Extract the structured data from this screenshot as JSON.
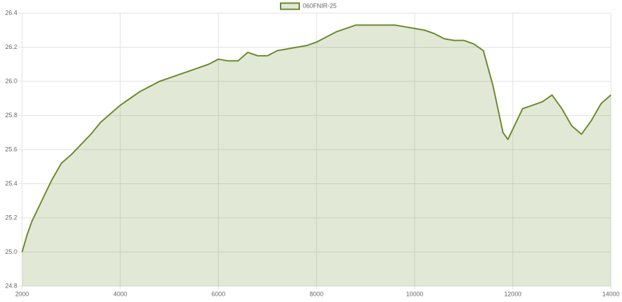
{
  "chart_data": {
    "type": "area",
    "legend": "top",
    "grid": true,
    "x": [
      2000,
      2100,
      2200,
      2400,
      2600,
      2800,
      3000,
      3200,
      3400,
      3600,
      3800,
      4000,
      4200,
      4400,
      4600,
      4800,
      5000,
      5200,
      5400,
      5600,
      5800,
      6000,
      6200,
      6400,
      6600,
      6800,
      7000,
      7200,
      7400,
      7600,
      7800,
      8000,
      8200,
      8400,
      8600,
      8800,
      9000,
      9200,
      9400,
      9600,
      9800,
      10000,
      10200,
      10400,
      10600,
      10800,
      11000,
      11200,
      11400,
      11600,
      11800,
      11900,
      12000,
      12200,
      12400,
      12600,
      12800,
      13000,
      13200,
      13400,
      13600,
      13800,
      14000
    ],
    "series": [
      {
        "name": "060FNIR-25",
        "color": "#6b8a2b",
        "values": [
          25.0,
          25.1,
          25.18,
          25.3,
          25.42,
          25.52,
          25.57,
          25.63,
          25.69,
          25.76,
          25.81,
          25.86,
          25.9,
          25.94,
          25.97,
          26.0,
          26.02,
          26.04,
          26.06,
          26.08,
          26.1,
          26.13,
          26.12,
          26.12,
          26.17,
          26.15,
          26.15,
          26.18,
          26.19,
          26.2,
          26.21,
          26.23,
          26.26,
          26.29,
          26.31,
          26.33,
          26.33,
          26.33,
          26.33,
          26.33,
          26.32,
          26.31,
          26.3,
          26.28,
          26.25,
          26.24,
          26.24,
          26.22,
          26.18,
          25.97,
          25.7,
          25.66,
          25.72,
          25.84,
          25.86,
          25.88,
          25.92,
          25.84,
          25.74,
          25.69,
          25.77,
          25.87,
          25.92
        ]
      }
    ],
    "xlim": [
      2000,
      14000
    ],
    "xticks": [
      2000,
      4000,
      6000,
      8000,
      10000,
      12000,
      14000
    ],
    "ylim": [
      24.8,
      26.4
    ],
    "yticks": [
      24.8,
      {
        "value": 25,
        "label": "25.0"
      },
      25.2,
      25.4,
      25.6,
      25.8,
      {
        "value": 26,
        "label": "26.0"
      },
      26.2,
      26.4
    ]
  }
}
